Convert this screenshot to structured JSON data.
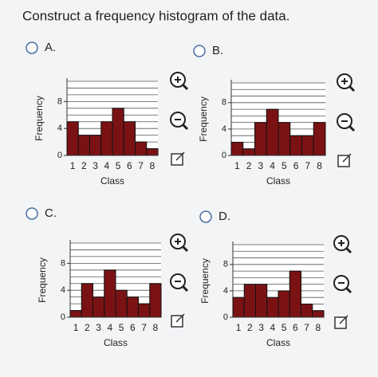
{
  "question": "Construct a frequency histogram of the data.",
  "options": [
    {
      "label": "A.",
      "chart_data": {
        "type": "bar",
        "xlabel": "Class",
        "ylabel": "Frequency",
        "categories": [
          "1",
          "2",
          "3",
          "4",
          "5",
          "6",
          "7",
          "8"
        ],
        "values": [
          5,
          3,
          3,
          5,
          7,
          5,
          2,
          1
        ],
        "color": "#7a1214",
        "ylim": [
          0,
          11
        ],
        "yticks": [
          0,
          4,
          8
        ],
        "grid_lines": [
          1,
          2,
          3,
          4,
          5,
          6,
          7,
          8,
          9,
          10,
          11
        ]
      }
    },
    {
      "label": "B.",
      "chart_data": {
        "type": "bar",
        "xlabel": "Class",
        "ylabel": "Frequency",
        "categories": [
          "1",
          "2",
          "3",
          "4",
          "5",
          "6",
          "7",
          "8"
        ],
        "values": [
          2,
          1,
          5,
          7,
          5,
          3,
          3,
          5
        ],
        "color": "#7a1214",
        "ylim": [
          0,
          11
        ],
        "yticks": [
          0,
          4,
          8
        ],
        "grid_lines": [
          1,
          2,
          3,
          4,
          5,
          6,
          7,
          8,
          9,
          10,
          11
        ]
      }
    },
    {
      "label": "C.",
      "chart_data": {
        "type": "bar",
        "xlabel": "Class",
        "ylabel": "Frequency",
        "categories": [
          "1",
          "2",
          "3",
          "4",
          "5",
          "6",
          "7",
          "8"
        ],
        "values": [
          1,
          5,
          3,
          7,
          4,
          3,
          2,
          5
        ],
        "color": "#7a1214",
        "ylim": [
          0,
          11
        ],
        "yticks": [
          0,
          4,
          8
        ],
        "grid_lines": [
          1,
          2,
          3,
          4,
          5,
          6,
          7,
          8,
          9,
          10,
          11
        ]
      }
    },
    {
      "label": "D.",
      "chart_data": {
        "type": "bar",
        "xlabel": "Class",
        "ylabel": "Frequency",
        "categories": [
          "1",
          "2",
          "3",
          "4",
          "5",
          "6",
          "7",
          "8"
        ],
        "values": [
          3,
          5,
          5,
          3,
          4,
          7,
          2,
          1
        ],
        "color": "#7a1214",
        "ylim": [
          0,
          11
        ],
        "yticks": [
          0,
          4,
          8
        ],
        "grid_lines": [
          1,
          2,
          3,
          4,
          5,
          6,
          7,
          8,
          9,
          10,
          11
        ]
      }
    }
  ]
}
